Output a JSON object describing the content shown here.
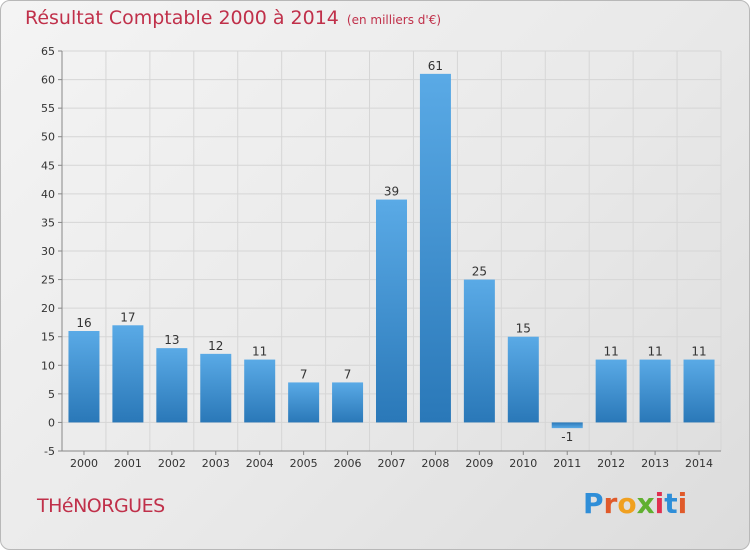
{
  "header": {
    "title": "Résultat Comptable 2000 à 2014",
    "unit": "(en milliers d'€)"
  },
  "footer": {
    "commune": "THéNORGUES",
    "logo_text": "Proxiti"
  },
  "colors": {
    "title": "#c0304a",
    "bar_light": "#5aaae6",
    "bar_dark": "#2a78b8",
    "grid": "#d8d8d8"
  },
  "chart_data": {
    "type": "bar",
    "categories": [
      "2000",
      "2001",
      "2002",
      "2003",
      "2004",
      "2005",
      "2006",
      "2007",
      "2008",
      "2009",
      "2010",
      "2011",
      "2012",
      "2013",
      "2014"
    ],
    "values": [
      16,
      17,
      13,
      12,
      11,
      7,
      7,
      39,
      61,
      25,
      15,
      -1,
      11,
      11,
      11
    ],
    "data_labels": [
      "16",
      "17",
      "13",
      "12",
      "11",
      "7",
      "7",
      "39",
      "61",
      "25",
      "15",
      "-1",
      "11",
      "11",
      "11"
    ],
    "ylim": [
      -5,
      65
    ],
    "yticks": [
      -5,
      0,
      5,
      10,
      15,
      20,
      25,
      30,
      35,
      40,
      45,
      50,
      55,
      60,
      65
    ],
    "grid": true,
    "title": "Résultat Comptable 2000 à 2014",
    "xlabel": "",
    "ylabel": ""
  }
}
